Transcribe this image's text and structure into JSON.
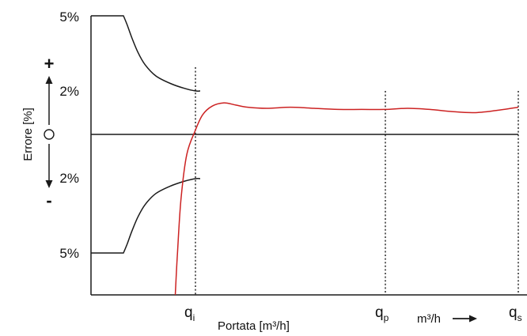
{
  "chart_data": {
    "type": "line",
    "title": "",
    "xlabel": "Portata [m³/h]",
    "x_arrow_label": "m³/h",
    "ylabel": "Errore [%]",
    "y_plus_sign": "+",
    "y_minus_sign": "-",
    "y_zero_symbol": "○",
    "y_tick_labels": [
      {
        "label": "5%",
        "value": 5
      },
      {
        "label": "2%",
        "value": 2
      },
      {
        "label": "2%",
        "value": -2
      },
      {
        "label": "5%",
        "value": -5
      }
    ],
    "x_markers": [
      {
        "base": "q",
        "sub": "i"
      },
      {
        "base": "q",
        "sub": "p"
      },
      {
        "base": "q",
        "sub": "s"
      }
    ],
    "series": [
      {
        "role": "upper-limit",
        "color": "#1a1a1a",
        "points": [
          [
            -0.1,
            5
          ],
          [
            0,
            5
          ],
          [
            0.05,
            4.65
          ],
          [
            0.12,
            4.1
          ],
          [
            0.2,
            3.55
          ],
          [
            0.3,
            3.05
          ],
          [
            0.45,
            2.6
          ],
          [
            0.65,
            2.3
          ],
          [
            0.85,
            2.1
          ],
          [
            1.0,
            2.0
          ],
          [
            1.1,
            2.0
          ]
        ]
      },
      {
        "role": "lower-limit",
        "color": "#1a1a1a",
        "points": [
          [
            -0.1,
            -5
          ],
          [
            0,
            -5
          ],
          [
            0.05,
            -4.65
          ],
          [
            0.12,
            -4.1
          ],
          [
            0.2,
            -3.55
          ],
          [
            0.3,
            -3.05
          ],
          [
            0.45,
            -2.6
          ],
          [
            0.65,
            -2.3
          ],
          [
            0.85,
            -2.1
          ],
          [
            1.0,
            -2.0
          ],
          [
            1.1,
            -2.0
          ]
        ]
      },
      {
        "role": "meter-error",
        "color": "#cc2222",
        "points": [
          [
            0.72,
            -7.2
          ],
          [
            0.75,
            -5.0
          ],
          [
            0.8,
            -2.8
          ],
          [
            0.88,
            -0.9
          ],
          [
            1.0,
            0.2
          ],
          [
            1.15,
            0.9
          ],
          [
            1.35,
            1.3
          ],
          [
            1.6,
            1.45
          ],
          [
            1.85,
            1.35
          ],
          [
            2.1,
            1.25
          ],
          [
            2.5,
            1.2
          ],
          [
            3.0,
            1.25
          ],
          [
            3.5,
            1.2
          ],
          [
            4.0,
            1.15
          ],
          [
            4.5,
            1.15
          ],
          [
            5.0,
            1.15
          ],
          [
            5.5,
            1.2
          ],
          [
            6.0,
            1.15
          ],
          [
            6.5,
            1.05
          ],
          [
            7.0,
            1.0
          ],
          [
            7.5,
            1.1
          ],
          [
            8.0,
            1.25
          ]
        ]
      }
    ],
    "colors": {
      "limit": "#1a1a1a",
      "measured": "#cc2222",
      "axis": "#1a1a1a"
    },
    "grid": false
  }
}
